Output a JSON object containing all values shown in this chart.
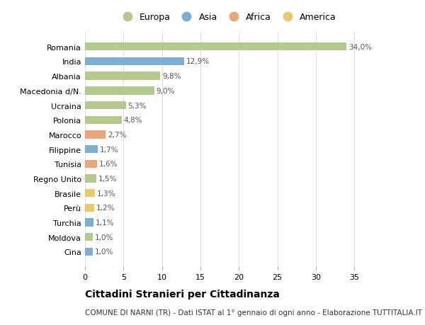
{
  "countries": [
    "Romania",
    "India",
    "Albania",
    "Macedonia d/N.",
    "Ucraina",
    "Polonia",
    "Marocco",
    "Filippine",
    "Tunisia",
    "Regno Unito",
    "Brasile",
    "Perù",
    "Turchia",
    "Moldova",
    "Cina"
  ],
  "values": [
    34.0,
    12.9,
    9.8,
    9.0,
    5.3,
    4.8,
    2.7,
    1.7,
    1.6,
    1.5,
    1.3,
    1.2,
    1.1,
    1.0,
    1.0
  ],
  "labels": [
    "34,0%",
    "12,9%",
    "9,8%",
    "9,0%",
    "5,3%",
    "4,8%",
    "2,7%",
    "1,7%",
    "1,6%",
    "1,5%",
    "1,3%",
    "1,2%",
    "1,1%",
    "1,0%",
    "1,0%"
  ],
  "continents": [
    "Europa",
    "Asia",
    "Europa",
    "Europa",
    "Europa",
    "Europa",
    "Africa",
    "Asia",
    "Africa",
    "Europa",
    "America",
    "America",
    "Asia",
    "Europa",
    "Asia"
  ],
  "continent_colors": {
    "Europa": "#b5c98e",
    "Asia": "#7bafd4",
    "Africa": "#e8a87c",
    "America": "#e8c96b"
  },
  "legend_order": [
    "Europa",
    "Asia",
    "Africa",
    "America"
  ],
  "background_color": "#ffffff",
  "grid_color": "#dddddd",
  "title": "Cittadini Stranieri per Cittadinanza",
  "subtitle": "COMUNE DI NARNI (TR) - Dati ISTAT al 1° gennaio di ogni anno - Elaborazione TUTTITALIA.IT",
  "xlim": [
    0,
    37
  ],
  "xticks": [
    0,
    5,
    10,
    15,
    20,
    25,
    30,
    35
  ],
  "label_fontsize": 7.5,
  "tick_fontsize": 8,
  "title_fontsize": 10,
  "subtitle_fontsize": 7.5,
  "bar_height": 0.55
}
